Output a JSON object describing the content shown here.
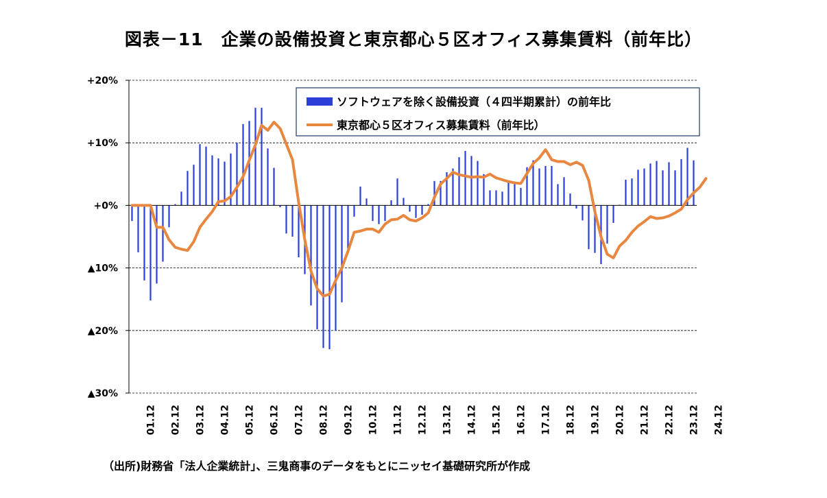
{
  "title": "図表－11　企業の設備投資と東京都心５区オフィス募集賃料（前年比）",
  "source": "（出所)財務省「法人企業統計」、三鬼商事のデータをもとにニッセイ基礎研究所が作成",
  "chart_data": {
    "type": "bar+line",
    "y_axis": {
      "min": -30,
      "max": 20,
      "ticks": [
        {
          "value": 20,
          "label": "+20%"
        },
        {
          "value": 10,
          "label": "+10%"
        },
        {
          "value": 0,
          "label": "+0%"
        },
        {
          "value": -10,
          "label": "▲10%"
        },
        {
          "value": -20,
          "label": "▲20%"
        },
        {
          "value": -30,
          "label": "▲30%"
        }
      ],
      "gridlines": "dashed"
    },
    "x_axis": {
      "start_quarter": "2001Q1",
      "end_quarter": "2024Q4",
      "tick_labels": [
        "01.12",
        "02.12",
        "03.12",
        "04.12",
        "05.12",
        "06.12",
        "07.12",
        "08.12",
        "09.12",
        "10.12",
        "11.12",
        "12.12",
        "13.12",
        "14.12",
        "15.12",
        "16.12",
        "17.12",
        "18.12",
        "19.12",
        "20.12",
        "21.12",
        "22.12",
        "23.12",
        "24.12"
      ]
    },
    "legend": {
      "placement": "top-right",
      "entries": [
        {
          "label": "ソフトウェアを除く設備投資（４四半期累計）の前年比",
          "color": "#2a3fd6",
          "kind": "bar"
        },
        {
          "label": "東京都心５区オフィス募集賃料（前年比）",
          "color": "#e8873f",
          "kind": "line"
        }
      ]
    },
    "series": [
      {
        "kind": "bar",
        "color": "#2a3fd6",
        "values": [
          -2.5,
          -7.5,
          -12,
          -15.2,
          -12.5,
          -9,
          -3.5,
          0.2,
          2.2,
          5.5,
          6.5,
          9.8,
          9.4,
          8,
          7.5,
          7,
          8.3,
          10,
          13,
          13.5,
          15.6,
          15.6,
          9.1,
          6,
          -0.3,
          -4.5,
          -5,
          -8.3,
          -11,
          -16,
          -19.8,
          -22.8,
          -23,
          -20,
          -15.5,
          -7.7,
          -1.8,
          3,
          1.1,
          -2.5,
          -3,
          -2.5,
          0.8,
          4.3,
          1.2,
          -1,
          -2,
          -1.5,
          0.2,
          3.9,
          3.9,
          5.3,
          5.9,
          7.7,
          8.7,
          7.9,
          7.1,
          5,
          2.4,
          2.4,
          2.2,
          3.8,
          3.8,
          2.8,
          6.1,
          7.2,
          5.9,
          6.3,
          6.3,
          3.4,
          4.5,
          1.9,
          -0.5,
          -2.4,
          -7,
          -7.6,
          -9.4,
          -6.1,
          -2.8,
          0.1,
          4.1,
          4.3,
          5.7,
          5.9,
          6.7,
          7.1,
          5.6,
          6.9,
          5.6,
          7.4,
          9.2,
          7.2
        ]
      },
      {
        "kind": "line",
        "color": "#e8873f",
        "values": [
          0,
          0,
          0,
          0,
          -3.5,
          -3.5,
          -5.5,
          -6.7,
          -7,
          -7.2,
          -5.8,
          -3.5,
          -2.2,
          -1,
          0.6,
          0.7,
          1.4,
          2.9,
          4.6,
          7.2,
          9.7,
          12.8,
          12,
          13.3,
          12.3,
          9.8,
          7.3,
          0.5,
          -5.5,
          -10.5,
          -13.3,
          -14.5,
          -14.2,
          -12,
          -10,
          -7.3,
          -4.3,
          -4.1,
          -3.8,
          -3.8,
          -4.3,
          -3,
          -2.3,
          -2.2,
          -1.6,
          -2.3,
          -2.5,
          -2,
          -1.2,
          1.3,
          3.4,
          4.3,
          5.3,
          4.9,
          4.7,
          4.5,
          4.6,
          4.5,
          5,
          4.4,
          4.1,
          3.8,
          3.6,
          3.5,
          5.1,
          6.7,
          7.6,
          8.9,
          7.3,
          7,
          7,
          6.5,
          6.9,
          6.4,
          4,
          -1,
          -5,
          -7.8,
          -8.4,
          -6.5,
          -5.6,
          -4.3,
          -3.3,
          -2.6,
          -1.8,
          -2.1,
          -2,
          -1.7,
          -1.2,
          -0.6,
          0.9,
          2,
          2.9,
          4.3
        ]
      }
    ]
  }
}
